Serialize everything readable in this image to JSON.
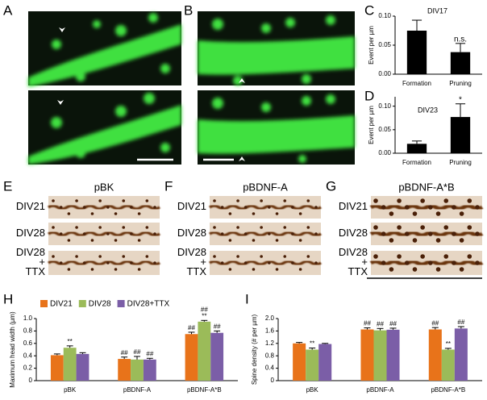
{
  "panels": [
    "A",
    "B",
    "C",
    "D",
    "E",
    "F",
    "G",
    "H",
    "I"
  ],
  "image_panels": [
    {
      "title": "pBK",
      "rows": [
        [
          "DIV21"
        ],
        [
          "DIV28"
        ],
        [
          "DIV28",
          "+",
          "TTX"
        ]
      ]
    },
    {
      "title": "pBDNF-A",
      "rows": [
        [
          "DIV21"
        ],
        [
          "DIV28"
        ],
        [
          "DIV28",
          "+",
          "TTX"
        ]
      ]
    },
    {
      "title": "pBDNF-A*B",
      "rows": [
        [
          "DIV21"
        ],
        [
          "DIV28"
        ],
        [
          "DIV28",
          "+",
          "TTX"
        ]
      ]
    }
  ],
  "chart_data": [
    {
      "type": "bar",
      "label": "DIV17",
      "ylabel": "Event per µm",
      "categories": [
        "Formation",
        "Pruning"
      ],
      "values": [
        0.075,
        0.038
      ],
      "errors": [
        0.018,
        0.015
      ],
      "annotations": [
        null,
        [
          "n.s."
        ]
      ],
      "color": "#000000",
      "ylim": [
        0,
        0.1
      ],
      "yticks": [
        {
          "value": 0,
          "label": "0.00"
        },
        {
          "value": 0.05,
          "label": "0.05"
        },
        {
          "value": 0.1,
          "label": "0.10"
        }
      ]
    },
    {
      "type": "bar",
      "label": "DIV23",
      "ylabel": "Event per µm",
      "categories": [
        "Formation",
        "Pruning"
      ],
      "values": [
        0.02,
        0.077
      ],
      "errors": [
        0.006,
        0.028
      ],
      "annotations": [
        null,
        [
          "*"
        ]
      ],
      "color": "#000000",
      "ylim": [
        0,
        0.12
      ],
      "yticks": [
        {
          "value": 0,
          "label": "0.00"
        },
        {
          "value": 0.05,
          "label": "0.05"
        },
        {
          "value": 0.1,
          "label": "0.10"
        }
      ]
    },
    {
      "type": "bar",
      "ylabel": "Maximum head width (µm)",
      "categories": [
        "pBK",
        "pBDNF-A",
        "pBDNF-A*B"
      ],
      "legend": "top",
      "series": [
        {
          "name": "DIV21",
          "color": "#e8731a",
          "values": [
            0.41,
            0.35,
            0.75
          ],
          "errors": [
            0.02,
            0.03,
            0.03
          ],
          "annotations": [
            null,
            [
              "##"
            ],
            [
              "##"
            ]
          ]
        },
        {
          "name": "DIV28",
          "color": "#9bbb59",
          "values": [
            0.53,
            0.34,
            0.95
          ],
          "errors": [
            0.03,
            0.05,
            0.02
          ],
          "annotations": [
            [
              "**"
            ],
            [
              "##"
            ],
            [
              "##",
              "**"
            ]
          ]
        },
        {
          "name": "DIV28+TTX",
          "color": "#7b5ea7",
          "values": [
            0.43,
            0.34,
            0.77
          ],
          "errors": [
            0.02,
            0.02,
            0.03
          ],
          "annotations": [
            null,
            [
              "##"
            ],
            [
              "##"
            ]
          ]
        }
      ],
      "ylim": [
        0,
        1.0
      ],
      "yticks": [
        0,
        0.2,
        0.4,
        0.6,
        0.8,
        {
          "value": 1.0,
          "label": "1.0"
        }
      ]
    },
    {
      "type": "bar",
      "ylabel": "Spine density (# per µm)",
      "categories": [
        "pBK",
        "pBDNF-A",
        "pBDNF-A*B"
      ],
      "series": [
        {
          "color": "#e8731a",
          "values": [
            1.2,
            1.65,
            1.65
          ],
          "errors": [
            0.03,
            0.05,
            0.06
          ],
          "annotations": [
            null,
            [
              "##"
            ],
            [
              "##"
            ]
          ]
        },
        {
          "color": "#9bbb59",
          "values": [
            1.0,
            1.62,
            1.0
          ],
          "errors": [
            0.05,
            0.06,
            0.04
          ],
          "annotations": [
            [
              "**"
            ],
            [
              "##"
            ],
            [
              "**"
            ]
          ]
        },
        {
          "color": "#7b5ea7",
          "values": [
            1.18,
            1.64,
            1.68
          ],
          "errors": [
            0.02,
            0.05,
            0.06
          ],
          "annotations": [
            null,
            [
              "##"
            ],
            [
              "##"
            ]
          ]
        }
      ],
      "ylim": [
        0,
        2.0
      ],
      "yticks": [
        0,
        0.4,
        0.8,
        1.2,
        1.6,
        {
          "value": 2.0,
          "label": "2.0"
        }
      ]
    }
  ]
}
